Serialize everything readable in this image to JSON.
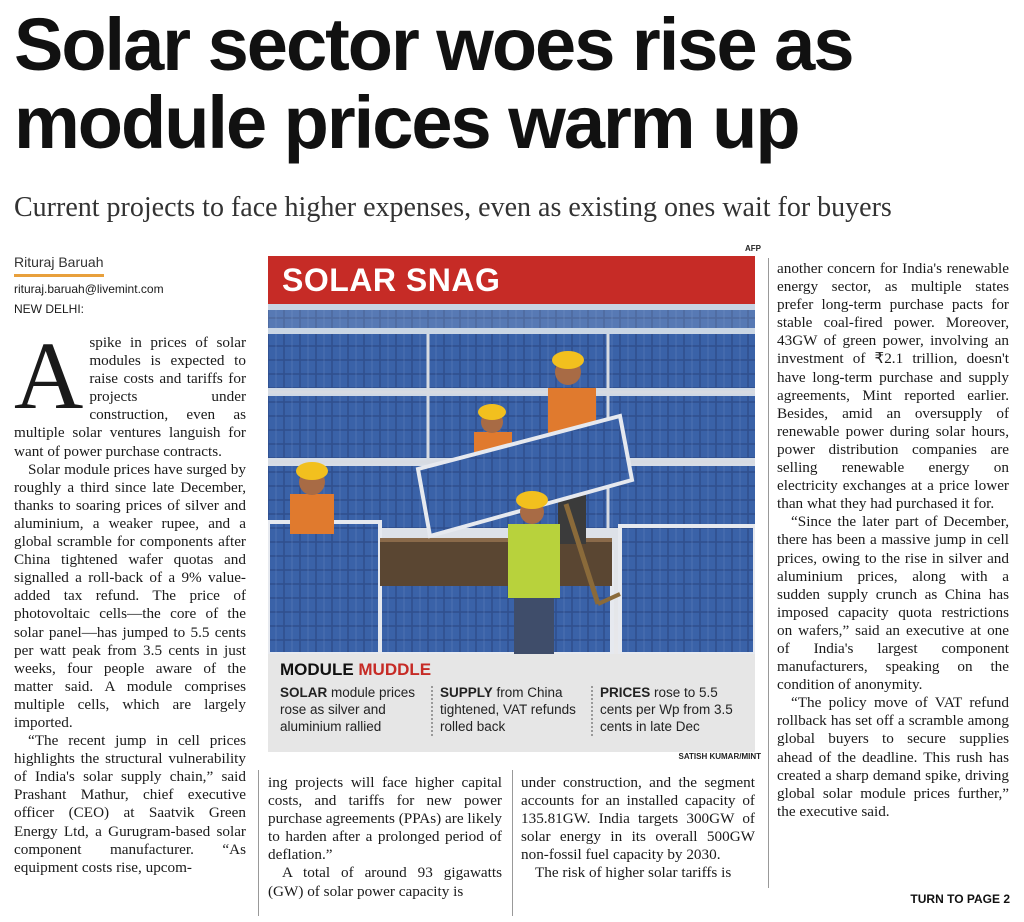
{
  "headline": "Solar sector woes rise as module prices warm up",
  "deck": "Current projects to face higher expenses, even as existing ones wait for buyers",
  "byline": {
    "author": "Rituraj Baruah",
    "email": "rituraj.baruah@livemint.com",
    "dateline": "NEW DELHI:"
  },
  "body": {
    "dropcap": "A",
    "col1": [
      "spike in prices of solar modules is expected to raise costs and tariffs for projects under construction, even as multiple solar ventures languish for want of power purchase contracts.",
      "Solar module prices have surged by roughly a third since late December, thanks to soaring prices of silver and aluminium, a weaker rupee, and a global scramble for components after China tightened wafer quotas and signalled a roll-back of a 9% value-added tax refund. The price of photovoltaic cells—the core of the solar panel—has jumped to 5.5 cents per watt peak from 3.5 cents in just weeks, four people aware of the matter said. A module comprises multiple cells, which are largely imported.",
      "“The recent jump in cell prices highlights the structural vulnerability of India's solar supply chain,” said Prashant Mathur, chief executive officer (CEO) at Saatvik Green Energy Ltd, a Gurugram-based solar component manufacturer. “As equipment costs rise, upcom-"
    ],
    "col2": [
      "ing projects will face higher capital costs, and tariffs for new power purchase agreements (PPAs) are likely to harden after a prolonged period of deflation.”",
      "A total of around 93 gigawatts (GW) of solar power capacity is"
    ],
    "col3": [
      "under construction, and the segment accounts for an installed capacity of 135.81GW. India targets 300GW of solar energy in its overall 500GW non-fossil fuel capacity by 2030.",
      "The risk of higher solar tariffs is"
    ],
    "col4": [
      "another concern for India's renewable energy sector, as multiple states prefer long-term purchase pacts for stable coal-fired power. Moreover, 43GW of green power, involving an investment of ₹2.1 trillion, doesn't have long-term purchase and supply agreements, Mint reported earlier. Besides, amid an oversupply of renewable power during solar hours, power distribution companies are selling renewable energy on electricity exchanges at a price lower than what they had purchased it for.",
      "“Since the later part of December, there has been a massive jump in cell prices, owing to the rise in silver and aluminium prices, along with a sudden supply crunch as China has imposed capacity quota restrictions on wafers,” said an executive at one of India's largest component manufacturers, speaking on the condition of anonymity.",
      "“The policy move of VAT refund rollback has set off a scramble among global buyers to secure supplies ahead of the deadline. This rush has created a sharp demand spike, driving global solar module prices further,” the executive said."
    ]
  },
  "graphic": {
    "credit_top": "AFP",
    "banner": "SOLAR SNAG",
    "caption_title_a": "MODULE ",
    "caption_title_b": "MUDDLE",
    "items": [
      {
        "lead": "SOLAR",
        "text": " module prices rose as silver and aluminium rallied"
      },
      {
        "lead": "SUPPLY",
        "text": " from China tightened, VAT refunds rolled back"
      },
      {
        "lead": "PRICES",
        "text": " rose to 5.5 cents per Wp from 3.5 cents in late Dec"
      }
    ],
    "credit_bottom": "SATISH KUMAR/MINT"
  },
  "turn": "TURN TO PAGE 2",
  "colors": {
    "accent": "#c62b26",
    "byline_rule": "#e8a03c"
  }
}
